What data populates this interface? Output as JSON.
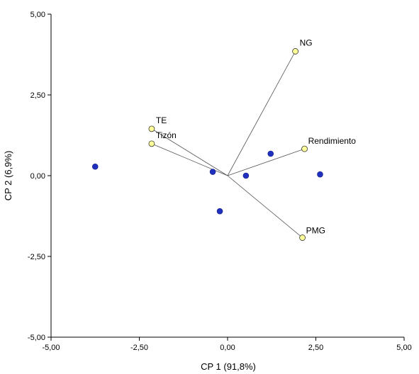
{
  "chart_data": {
    "type": "scatter",
    "subtype": "biplot",
    "xlabel": "CP 1 (91,8%)",
    "ylabel": "CP 2 (6,9%)",
    "xlim": [
      -5,
      5
    ],
    "ylim": [
      -5,
      5
    ],
    "x_ticks": [
      -5,
      -2.5,
      0,
      2.5,
      5
    ],
    "y_ticks": [
      -5,
      -2.5,
      0,
      2.5,
      5
    ],
    "x_tick_labels": [
      "-5,00",
      "-2,50",
      "0,00",
      "2,50",
      "5,00"
    ],
    "y_tick_labels": [
      "-5,00",
      "-2,50",
      "0,00",
      "2,50",
      "5,00"
    ],
    "grid": false,
    "observations": {
      "color": "#1f2fbf",
      "points": [
        {
          "x": -3.75,
          "y": 0.28
        },
        {
          "x": -0.42,
          "y": 0.12
        },
        {
          "x": -0.22,
          "y": -1.1
        },
        {
          "x": 0.52,
          "y": 0.0
        },
        {
          "x": 1.22,
          "y": 0.68
        },
        {
          "x": 2.62,
          "y": 0.04
        }
      ]
    },
    "variables": {
      "color": "#ffff99",
      "vectors": [
        {
          "label": "NG",
          "x": 1.92,
          "y": 3.85
        },
        {
          "label": "TE",
          "x": -2.15,
          "y": 1.45
        },
        {
          "label": "Tizón",
          "x": -2.15,
          "y": 0.99
        },
        {
          "label": "Rendimiento",
          "x": 2.18,
          "y": 0.83
        },
        {
          "label": "PMG",
          "x": 2.12,
          "y": -1.92
        }
      ]
    }
  }
}
